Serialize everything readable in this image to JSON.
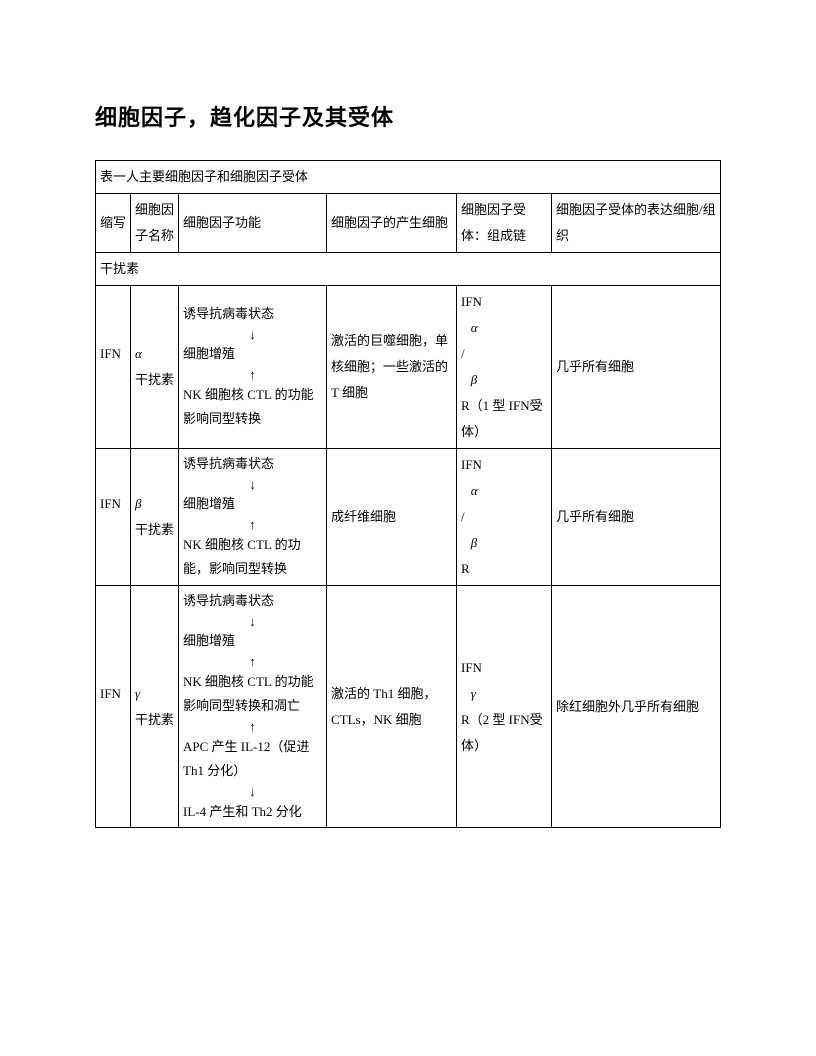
{
  "title": "细胞因子，趋化因子及其受体",
  "table_caption": "表一人主要细胞因子和细胞因子受体",
  "headers": {
    "abbr": "缩写",
    "name": "细胞因子名称",
    "func": "细胞因子功能",
    "prod": "细胞因子的产生细胞",
    "recp": "细胞因子受体：组成链",
    "expr": "细胞因子受体的表达细胞/组织"
  },
  "section": "干扰素",
  "rows": [
    {
      "abbr": "IFN",
      "abbr_sym": "α",
      "name_sym": "α",
      "name_suffix": "干扰素",
      "func_l1": "诱导抗病毒状态",
      "func_a1": "↓",
      "func_l2": "细胞增殖",
      "func_a2": "↑",
      "func_l3": "NK 细胞核 CTL 的功能",
      "func_l4": "影响同型转换",
      "prod": "激活的巨噬细胞，单核细胞；一些激活的 T 细胞",
      "recp_pre": "IFN",
      "recp_s1": "α",
      "recp_sep": "/",
      "recp_s2": "β",
      "recp_suf": "R（1 型 IFN受体）",
      "expr": "几乎所有细胞"
    },
    {
      "abbr": "IFN",
      "abbr_sym": "β",
      "name_sym": "β",
      "name_suffix": "干扰素",
      "func_l1": "诱导抗病毒状态",
      "func_a1": "↓",
      "func_l2": "细胞增殖",
      "func_a2": "↑",
      "func_l3": "NK 细胞核 CTL 的功能，影响同型转换",
      "prod": "成纤维细胞",
      "recp_pre": "IFN",
      "recp_s1": "α",
      "recp_sep": "/",
      "recp_s2": "β",
      "recp_suf": "R",
      "expr": "几乎所有细胞"
    },
    {
      "abbr": "IFN",
      "abbr_sym": "γ",
      "name_sym": "γ",
      "name_suffix": "干扰素",
      "func_l1": "诱导抗病毒状态",
      "func_a1": "↓",
      "func_l2": "细胞增殖",
      "func_a2": "↑",
      "func_l3": "NK 细胞核 CTL 的功能",
      "func_l4": "影响同型转换和凋亡",
      "func_a3": "↑",
      "func_l5": "APC 产生 IL-12（促进 Th1 分化）",
      "func_a4": "↓",
      "func_l6": "IL-4 产生和 Th2 分化",
      "prod": "激活的 Th1 细胞，CTLs，NK 细胞",
      "recp_pre": "IFN",
      "recp_s1": "γ",
      "recp_suf": "R（2 型 IFN受体）",
      "expr": "除红细胞外几乎所有细胞"
    }
  ]
}
